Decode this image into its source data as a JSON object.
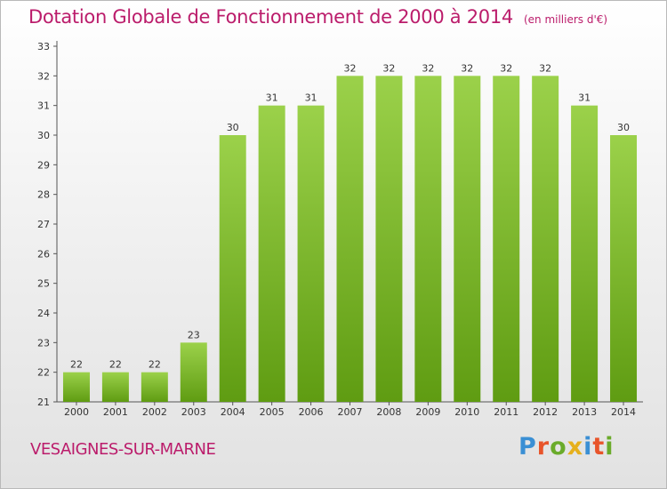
{
  "title": "Dotation Globale de Fonctionnement de 2000 à 2014",
  "subtitle": "(en milliers d'€)",
  "city": "VESAIGNES-SUR-MARNE",
  "logo": {
    "text": "Proxiti",
    "colors": [
      "#3a8fd4",
      "#e8542a",
      "#6aab2a",
      "#e6b01c",
      "#3a8fd4",
      "#e8542a",
      "#6aab2a"
    ]
  },
  "colors": {
    "title": "#bb1c6b",
    "bar_top": "#9bd14a",
    "bar_bottom": "#5f9c12"
  },
  "chart_data": {
    "type": "bar",
    "categories": [
      "2000",
      "2001",
      "2002",
      "2003",
      "2004",
      "2005",
      "2006",
      "2007",
      "2008",
      "2009",
      "2010",
      "2011",
      "2012",
      "2013",
      "2014"
    ],
    "values": [
      22,
      22,
      22,
      23,
      30,
      31,
      31,
      32,
      32,
      32,
      32,
      32,
      32,
      31,
      30
    ],
    "ylim": [
      21,
      33
    ],
    "yticks": [
      21,
      22,
      23,
      24,
      25,
      26,
      27,
      28,
      29,
      30,
      31,
      32,
      33
    ],
    "grid": false
  }
}
